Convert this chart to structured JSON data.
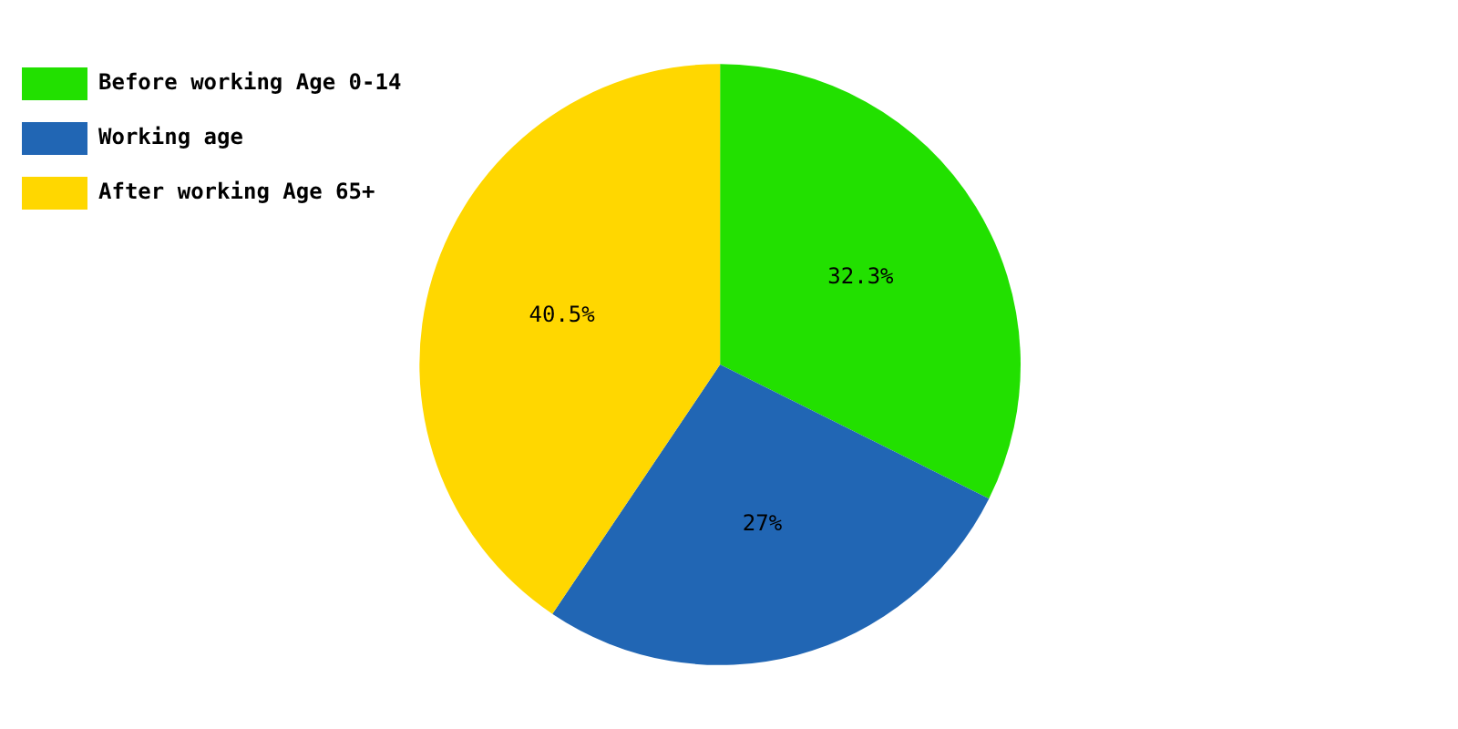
{
  "chart_data": {
    "type": "pie",
    "categories": [
      "Before working Age 0-14",
      "Working age",
      "After working Age 65+"
    ],
    "values": [
      32.3,
      27,
      40.5
    ],
    "colors": [
      "#22e000",
      "#2166b4",
      "#ffd700"
    ],
    "value_labels": [
      "32.3%",
      "27%",
      "40.5%"
    ],
    "legend": "top left"
  }
}
